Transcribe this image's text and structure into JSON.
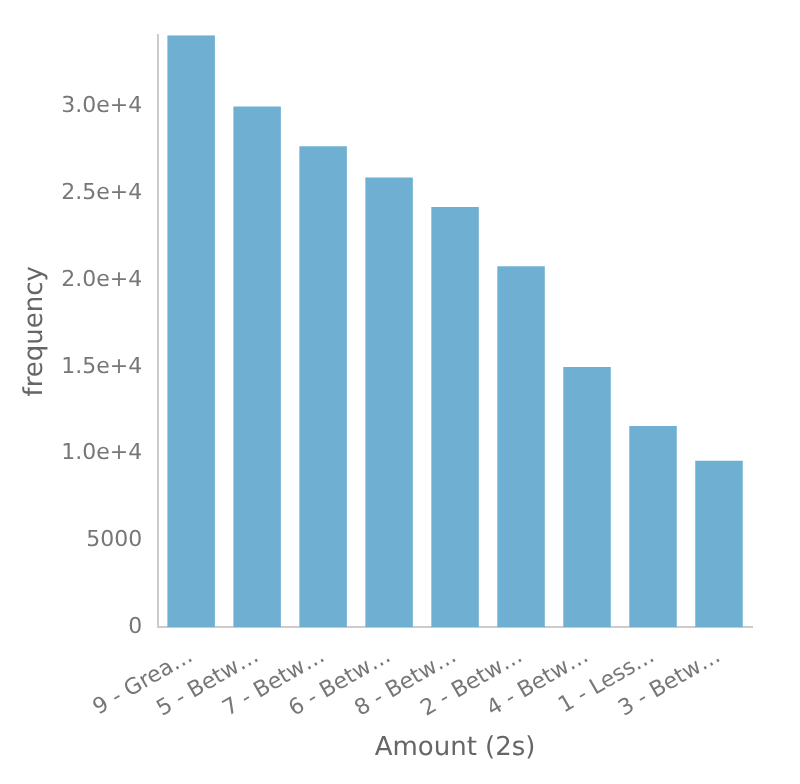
{
  "chart_data": {
    "type": "bar",
    "xlabel": "Amount (2s)",
    "ylabel": "frequency",
    "categories": [
      "9 - Grea…",
      "5 - Betw…",
      "7 - Betw…",
      "6 - Betw…",
      "8 - Betw…",
      "2 - Betw…",
      "4 - Betw…",
      "1 - Less…",
      "3 - Betw…"
    ],
    "values": [
      34100,
      30000,
      27700,
      25900,
      24200,
      20800,
      15000,
      11600,
      9600
    ],
    "color": "#6fb0d2",
    "ylim": [
      0,
      34100
    ],
    "yticks": [
      0,
      5000,
      {
        "value": 10000,
        "label": "1.0e+4"
      },
      {
        "value": 15000,
        "label": "1.5e+4"
      },
      {
        "value": 20000,
        "label": "2.0e+4"
      },
      {
        "value": 25000,
        "label": "2.5e+4"
      },
      {
        "value": 30000,
        "label": "3.0e+4"
      }
    ],
    "grid": false,
    "legend": false
  }
}
